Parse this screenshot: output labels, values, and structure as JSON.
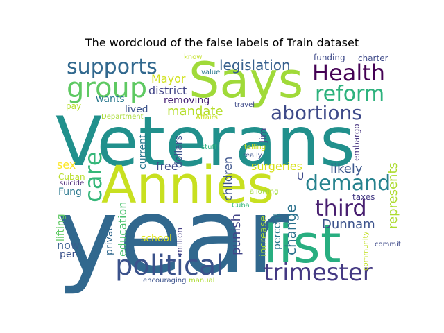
{
  "title": "The wordcloud of the false labels of Train dataset",
  "words": [
    {
      "text": "year",
      "color": "#31688e"
    },
    {
      "text": "Veterans",
      "color": "#21908c"
    },
    {
      "text": "Annies",
      "color": "#c8e020"
    },
    {
      "text": "Says",
      "color": "#a0da39"
    },
    {
      "text": "list",
      "color": "#28ae80"
    },
    {
      "text": "political",
      "color": "#3b528b"
    },
    {
      "text": "trimester",
      "color": "#443983"
    },
    {
      "text": "Health",
      "color": "#440154"
    },
    {
      "text": "supports",
      "color": "#31688e"
    },
    {
      "text": "group",
      "color": "#5ec962"
    },
    {
      "text": "reform",
      "color": "#2db27d"
    },
    {
      "text": "abortions",
      "color": "#3e4a89"
    },
    {
      "text": "demand",
      "color": "#26828e"
    },
    {
      "text": "third",
      "color": "#481f70"
    },
    {
      "text": "care",
      "color": "#35b779"
    },
    {
      "text": "legislation",
      "color": "#355f8d"
    },
    {
      "text": "mandate",
      "color": "#b5de2b"
    },
    {
      "text": "Mayor",
      "color": "#d0e11c"
    },
    {
      "text": "district",
      "color": "#414487"
    },
    {
      "text": "wants",
      "color": "#2a788e"
    },
    {
      "text": "lived",
      "color": "#3b528b"
    },
    {
      "text": "removing",
      "color": "#482475"
    },
    {
      "text": "free",
      "color": "#3e4a89"
    },
    {
      "text": "sex",
      "color": "#fde725"
    },
    {
      "text": "surgeries",
      "color": "#d8e219"
    },
    {
      "text": "likely",
      "color": "#39568c"
    },
    {
      "text": "change",
      "color": "#2c728e"
    },
    {
      "text": "Dunnam",
      "color": "#3b528b"
    },
    {
      "text": "represents",
      "color": "#addc30"
    },
    {
      "text": "punish",
      "color": "#414487"
    },
    {
      "text": "children",
      "color": "#3b528b"
    },
    {
      "text": "education",
      "color": "#4ac16d"
    },
    {
      "text": "school",
      "color": "#dde318"
    },
    {
      "text": "Fung",
      "color": "#2a788e"
    },
    {
      "text": "now",
      "color": "#365d8d"
    },
    {
      "text": "per",
      "color": "#3b528b"
    },
    {
      "text": "funding",
      "color": "#3e4a89"
    },
    {
      "text": "charter",
      "color": "#3e4a89"
    },
    {
      "text": "increase",
      "color": "#a2da37"
    },
    {
      "text": "percent",
      "color": "#2a788e"
    },
    {
      "text": "Jim",
      "color": "#414487"
    },
    {
      "text": "embargo",
      "color": "#46327e"
    },
    {
      "text": "current",
      "color": "#2a788e"
    },
    {
      "text": "dollars",
      "color": "#3b528b"
    },
    {
      "text": "million",
      "color": "#433e85"
    },
    {
      "text": "private",
      "color": "#31688e"
    },
    {
      "text": "lifting",
      "color": "#5ec962"
    },
    {
      "text": "Cuban",
      "color": "#b8de29"
    },
    {
      "text": "suicide",
      "color": "#482475"
    },
    {
      "text": "pay",
      "color": "#b5de2b"
    },
    {
      "text": "Department",
      "color": "#a8db34"
    },
    {
      "text": "value",
      "color": "#2a788e"
    },
    {
      "text": "know",
      "color": "#c2df23"
    },
    {
      "text": "travel",
      "color": "#3e4a89"
    },
    {
      "text": "Affairs",
      "color": "#cae11f"
    },
    {
      "text": "stuff",
      "color": "#29af7f"
    },
    {
      "text": "telling",
      "color": "#d0e11c"
    },
    {
      "text": "really",
      "color": "#3b528b"
    },
    {
      "text": "U",
      "color": "#3e4a89"
    },
    {
      "text": "allowing",
      "color": "#a0da39"
    },
    {
      "text": "taxes",
      "color": "#443983"
    },
    {
      "text": "Cuba",
      "color": "#35b779"
    },
    {
      "text": "commit",
      "color": "#3e4a89"
    },
    {
      "text": "community",
      "color": "#c2df23"
    },
    {
      "text": "encouraging",
      "color": "#3b528b"
    },
    {
      "text": "manual",
      "color": "#addc30"
    }
  ]
}
